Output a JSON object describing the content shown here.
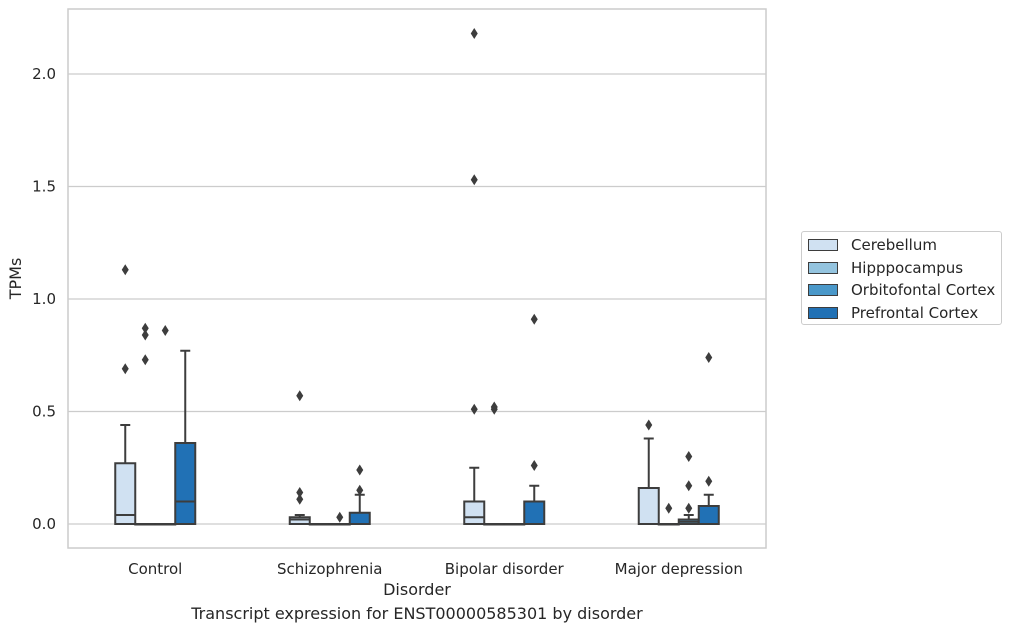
{
  "chart_data": {
    "type": "box",
    "title": "Transcript expression for ENST00000585301 by disorder",
    "xlabel": "Disorder",
    "ylabel": "TPMs",
    "ylim": [
      -0.1,
      2.3
    ],
    "yticks": [
      0.0,
      0.5,
      1.0,
      1.5,
      2.0
    ],
    "ytick_labels": [
      "0.0",
      "0.5",
      "1.0",
      "1.5",
      "2.0"
    ],
    "grid": "horizontal",
    "legend_position": "right",
    "categories": [
      "Control",
      "Schizophrenia",
      "Bipolar disorder",
      "Major depression"
    ],
    "series": [
      {
        "name": "Cerebellum",
        "color": "#d0e1f2",
        "boxes": [
          {
            "q1": 0.0,
            "median": 0.04,
            "q3": 0.27,
            "whisker_low": 0.0,
            "whisker_high": 0.44,
            "outliers": [
              0.69,
              1.13
            ]
          },
          {
            "q1": 0.0,
            "median": 0.02,
            "q3": 0.03,
            "whisker_low": 0.0,
            "whisker_high": 0.04,
            "outliers": [
              0.11,
              0.14,
              0.57
            ]
          },
          {
            "q1": 0.0,
            "median": 0.03,
            "q3": 0.1,
            "whisker_low": 0.0,
            "whisker_high": 0.25,
            "outliers": [
              0.51,
              1.53,
              2.18
            ]
          },
          {
            "q1": 0.0,
            "median": 0.0,
            "q3": 0.16,
            "whisker_low": 0.0,
            "whisker_high": 0.38,
            "outliers": [
              0.44
            ]
          }
        ]
      },
      {
        "name": "Hipppocampus",
        "color": "#94c4df",
        "boxes": [
          {
            "q1": 0.0,
            "median": 0.0,
            "q3": 0.0,
            "whisker_low": 0.0,
            "whisker_high": 0.0,
            "outliers": [
              0.73,
              0.84,
              0.87
            ]
          },
          {
            "q1": 0.0,
            "median": 0.0,
            "q3": 0.0,
            "whisker_low": 0.0,
            "whisker_high": 0.0,
            "outliers": []
          },
          {
            "q1": 0.0,
            "median": 0.0,
            "q3": 0.0,
            "whisker_low": 0.0,
            "whisker_high": 0.0,
            "outliers": [
              0.51,
              0.52
            ]
          },
          {
            "q1": 0.0,
            "median": 0.0,
            "q3": 0.0,
            "whisker_low": 0.0,
            "whisker_high": 0.0,
            "outliers": [
              0.07
            ]
          }
        ]
      },
      {
        "name": "Orbitofontal Cortex",
        "color": "#4a98c9",
        "boxes": [
          {
            "q1": 0.0,
            "median": 0.0,
            "q3": 0.0,
            "whisker_low": 0.0,
            "whisker_high": 0.0,
            "outliers": [
              0.86
            ]
          },
          {
            "q1": 0.0,
            "median": 0.0,
            "q3": 0.0,
            "whisker_low": 0.0,
            "whisker_high": 0.0,
            "outliers": [
              0.03
            ]
          },
          {
            "q1": 0.0,
            "median": 0.0,
            "q3": 0.0,
            "whisker_low": 0.0,
            "whisker_high": 0.0,
            "outliers": []
          },
          {
            "q1": 0.0,
            "median": 0.01,
            "q3": 0.02,
            "whisker_low": 0.0,
            "whisker_high": 0.04,
            "outliers": [
              0.07,
              0.17,
              0.3
            ]
          }
        ]
      },
      {
        "name": "Prefrontal Cortex",
        "color": "#2171b5",
        "boxes": [
          {
            "q1": 0.0,
            "median": 0.1,
            "q3": 0.36,
            "whisker_low": 0.0,
            "whisker_high": 0.77,
            "outliers": []
          },
          {
            "q1": 0.0,
            "median": 0.0,
            "q3": 0.05,
            "whisker_low": 0.0,
            "whisker_high": 0.13,
            "outliers": [
              0.15,
              0.24
            ]
          },
          {
            "q1": 0.0,
            "median": 0.0,
            "q3": 0.1,
            "whisker_low": 0.0,
            "whisker_high": 0.17,
            "outliers": [
              0.26,
              0.91
            ]
          },
          {
            "q1": 0.0,
            "median": 0.0,
            "q3": 0.08,
            "whisker_low": 0.0,
            "whisker_high": 0.13,
            "outliers": [
              0.19,
              0.74
            ]
          }
        ]
      }
    ]
  }
}
